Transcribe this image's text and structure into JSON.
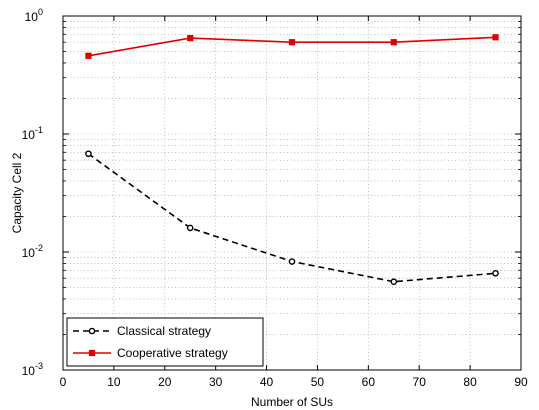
{
  "chart_data": {
    "type": "line",
    "xlabel": "Number of SUs",
    "ylabel": "Capacity Cell 2",
    "xlim": [
      0,
      90
    ],
    "ylim": [
      0.001,
      1
    ],
    "yscale": "log",
    "grid": true,
    "legend_position": "bottom-left",
    "x_ticks": [
      0,
      10,
      20,
      30,
      40,
      50,
      60,
      70,
      80,
      90
    ],
    "y_ticks": [
      {
        "value": 0.001,
        "base": "10",
        "exp": "-3"
      },
      {
        "value": 0.01,
        "base": "10",
        "exp": "-2"
      },
      {
        "value": 0.1,
        "base": "10",
        "exp": "-1"
      },
      {
        "value": 1,
        "base": "10",
        "exp": "0"
      }
    ],
    "series": [
      {
        "name": "Classical strategy",
        "x": [
          5,
          25,
          45,
          65,
          85
        ],
        "values": [
          0.068,
          0.016,
          0.0083,
          0.0056,
          0.0066
        ],
        "color": "#000000",
        "line_style": "dashed",
        "marker": "circle"
      },
      {
        "name": "Cooperative strategy",
        "x": [
          5,
          25,
          45,
          65,
          85
        ],
        "values": [
          0.46,
          0.65,
          0.6,
          0.6,
          0.66
        ],
        "color": "#e00000",
        "line_style": "solid",
        "marker": "square"
      }
    ]
  }
}
